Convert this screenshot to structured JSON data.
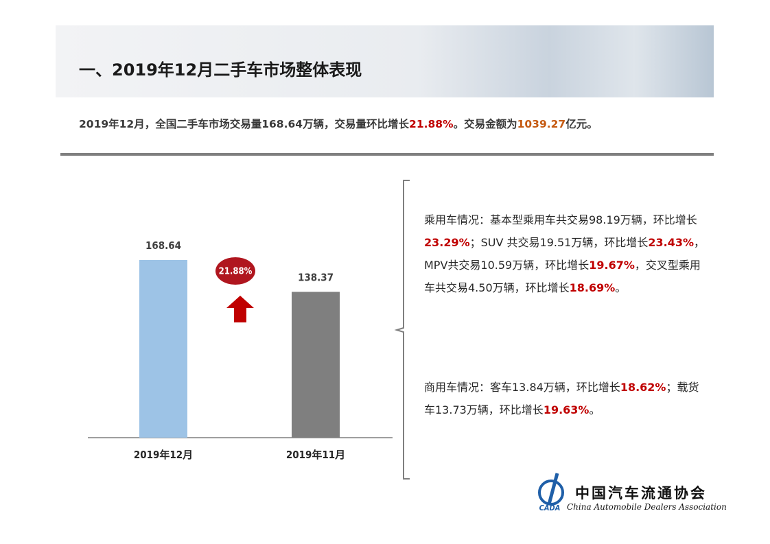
{
  "header": {
    "title": "一、2019年12月二手车市场整体表现"
  },
  "summary": [
    {
      "text": "2019年12月，全国二手车市场交易量168.64万辆，交易量环比增长"
    },
    {
      "text": "21.88%",
      "color": "#c00000"
    },
    {
      "text": "。交易金额为"
    },
    {
      "text": "1039.27",
      "color": "#c55a11"
    },
    {
      "text": "亿元。"
    }
  ],
  "chart_data": {
    "type": "bar",
    "categories": [
      "2019年12月",
      "2019年11月"
    ],
    "values": [
      168.64,
      138.37
    ],
    "colors": [
      "#9dc3e6",
      "#7f7f7f"
    ],
    "annotation": "21.88%"
  },
  "notes": [
    [
      {
        "text": "乘用车情况：基本型乘用车共交易98.19万辆，环比增长"
      },
      {
        "text": "23.29%",
        "color": "#c00000"
      },
      {
        "text": "；SUV 共交易19.51万辆，环比增长"
      },
      {
        "text": "23.43%",
        "color": "#c00000"
      },
      {
        "text": "，MPV共交易10.59万辆，环比增长"
      },
      {
        "text": "19.67%",
        "color": "#c00000"
      },
      {
        "text": "，交叉型乘用车共交易4.50万辆，环比增长"
      },
      {
        "text": "18.69%",
        "color": "#c00000"
      },
      {
        "text": "。"
      }
    ],
    [
      {
        "text": "商用车情况：客车13.84万辆，环比增长"
      },
      {
        "text": "18.62%",
        "color": "#c00000"
      },
      {
        "text": "；载货车13.73万辆，环比增长"
      },
      {
        "text": "19.63%",
        "color": "#c00000"
      },
      {
        "text": "。"
      }
    ]
  ],
  "logo": {
    "mark": "CADA",
    "name": "中国汽车流通协会",
    "english": "China Automobile Dealers Association"
  }
}
